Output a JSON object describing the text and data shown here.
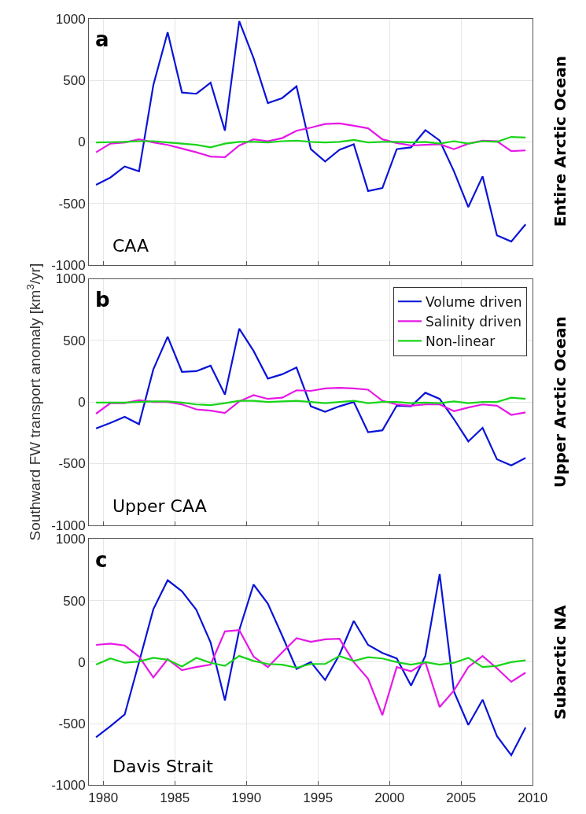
{
  "chart_data": [
    {
      "type": "line",
      "annotations": [
        "a",
        "CAA",
        "Entire Arctic Ocean"
      ],
      "x": [
        1979.5,
        1980.5,
        1981.5,
        1982.5,
        1983.5,
        1984.5,
        1985.5,
        1986.5,
        1987.5,
        1988.5,
        1989.5,
        1990.5,
        1991.5,
        1992.5,
        1993.5,
        1994.5,
        1995.5,
        1996.5,
        1997.5,
        1998.5,
        1999.5,
        2000.5,
        2001.5,
        2002.5,
        2003.5,
        2004.5,
        2005.5,
        2006.5,
        2007.5,
        2008.5,
        2009.5
      ],
      "series": [
        {
          "color": "#0a14d6",
          "values": [
            -350,
            -290,
            -200,
            -240,
            460,
            890,
            400,
            390,
            480,
            90,
            980,
            680,
            315,
            355,
            450,
            -60,
            -160,
            -65,
            -20,
            -400,
            -375,
            -60,
            -45,
            95,
            10,
            -240,
            -530,
            -280,
            -760,
            -810,
            -670
          ]
        },
        {
          "color": "#e619e6",
          "values": [
            -85,
            -15,
            -5,
            20,
            -5,
            -25,
            -55,
            -85,
            -120,
            -125,
            -30,
            20,
            5,
            30,
            90,
            115,
            145,
            150,
            130,
            110,
            20,
            -10,
            -30,
            -25,
            -20,
            -60,
            -15,
            10,
            5,
            -75,
            -70
          ]
        },
        {
          "color": "#19d419",
          "values": [
            -5,
            -3,
            0,
            5,
            5,
            -5,
            -15,
            -25,
            -45,
            -15,
            0,
            0,
            -5,
            5,
            10,
            0,
            -5,
            0,
            15,
            -5,
            0,
            0,
            -5,
            0,
            -15,
            5,
            -15,
            5,
            0,
            40,
            35
          ]
        }
      ],
      "xlim": [
        1979,
        2010
      ],
      "xticks": [
        1980,
        1985,
        1990,
        1995,
        2000,
        2005,
        2010
      ],
      "ylim": [
        -1000,
        1000
      ],
      "yticks": [
        -1000,
        -500,
        0,
        500,
        1000
      ],
      "grid": true,
      "tick_labels": "y",
      "line_style": "solid",
      "marker": "none"
    },
    {
      "type": "line",
      "ylabel": "Southward FW transport anomaly [km$^{3}$/yr]",
      "annotations": [
        "b",
        "Upper CAA",
        "Upper Arctic Ocean"
      ],
      "x": [
        1979.5,
        1980.5,
        1981.5,
        1982.5,
        1983.5,
        1984.5,
        1985.5,
        1986.5,
        1987.5,
        1988.5,
        1989.5,
        1990.5,
        1991.5,
        1992.5,
        1993.5,
        1994.5,
        1995.5,
        1996.5,
        1997.5,
        1998.5,
        1999.5,
        2000.5,
        2001.5,
        2002.5,
        2003.5,
        2004.5,
        2005.5,
        2006.5,
        2007.5,
        2008.5,
        2009.5
      ],
      "series": [
        {
          "name": "Volume driven",
          "color": "#0a14d6",
          "values": [
            -215,
            -170,
            -120,
            -180,
            265,
            530,
            245,
            250,
            295,
            60,
            595,
            415,
            190,
            225,
            280,
            -35,
            -80,
            -35,
            0,
            -245,
            -230,
            -30,
            -35,
            75,
            25,
            -140,
            -320,
            -210,
            -465,
            -515,
            -455
          ]
        },
        {
          "name": "Salinity driven",
          "color": "#e619e6",
          "values": [
            -95,
            -10,
            -10,
            15,
            0,
            0,
            -20,
            -60,
            -70,
            -90,
            5,
            55,
            25,
            35,
            95,
            90,
            110,
            115,
            110,
            100,
            10,
            -20,
            -30,
            -20,
            -20,
            -75,
            -45,
            -20,
            -30,
            -105,
            -85
          ]
        },
        {
          "name": "Non-linear",
          "color": "#19d419",
          "values": [
            -5,
            -5,
            -5,
            0,
            5,
            5,
            -5,
            -20,
            -25,
            -10,
            10,
            10,
            0,
            5,
            10,
            0,
            -10,
            0,
            10,
            -10,
            0,
            0,
            -10,
            -5,
            -10,
            5,
            -10,
            0,
            0,
            35,
            25
          ]
        }
      ],
      "xlim": [
        1979,
        2010
      ],
      "xticks": [
        1980,
        1985,
        1990,
        1995,
        2000,
        2005,
        2010
      ],
      "ylim": [
        -1000,
        1000
      ],
      "yticks": [
        -1000,
        -500,
        0,
        500,
        1000
      ],
      "grid": true,
      "tick_labels": "y",
      "legend": "top right",
      "line_style": "solid",
      "marker": "none"
    },
    {
      "type": "line",
      "annotations": [
        "c",
        "Davis Strait",
        "Subarctic NA"
      ],
      "x": [
        1979.5,
        1980.5,
        1981.5,
        1982.5,
        1983.5,
        1984.5,
        1985.5,
        1986.5,
        1987.5,
        1988.5,
        1989.5,
        1990.5,
        1991.5,
        1992.5,
        1993.5,
        1994.5,
        1995.5,
        1996.5,
        1997.5,
        1998.5,
        1999.5,
        2000.5,
        2001.5,
        2002.5,
        2003.5,
        2004.5,
        2005.5,
        2006.5,
        2007.5,
        2008.5,
        2009.5
      ],
      "series": [
        {
          "color": "#0a14d6",
          "values": [
            -610,
            -520,
            -425,
            0,
            430,
            665,
            575,
            425,
            160,
            -310,
            260,
            630,
            475,
            215,
            -55,
            0,
            -145,
            60,
            335,
            140,
            75,
            30,
            -190,
            50,
            715,
            -240,
            -510,
            -305,
            -600,
            -755,
            -530
          ]
        },
        {
          "color": "#e619e6",
          "values": [
            140,
            150,
            135,
            45,
            -125,
            25,
            -65,
            -40,
            -20,
            250,
            260,
            45,
            -40,
            80,
            195,
            165,
            185,
            190,
            0,
            -135,
            -430,
            -40,
            -75,
            0,
            -365,
            -230,
            -40,
            50,
            -50,
            -160,
            -85
          ]
        },
        {
          "color": "#19d419",
          "values": [
            -20,
            30,
            -5,
            5,
            35,
            20,
            -35,
            35,
            -5,
            -30,
            50,
            10,
            -15,
            -20,
            -45,
            -15,
            -15,
            50,
            10,
            40,
            30,
            0,
            -20,
            0,
            -20,
            -5,
            35,
            -40,
            -30,
            0,
            15
          ]
        }
      ],
      "xlim": [
        1979,
        2010
      ],
      "xticks": [
        1980,
        1985,
        1990,
        1995,
        2000,
        2005,
        2010
      ],
      "ylim": [
        -1000,
        1000
      ],
      "yticks": [
        -1000,
        -500,
        0,
        500,
        1000
      ],
      "grid": true,
      "line_style": "solid",
      "marker": "none"
    }
  ]
}
